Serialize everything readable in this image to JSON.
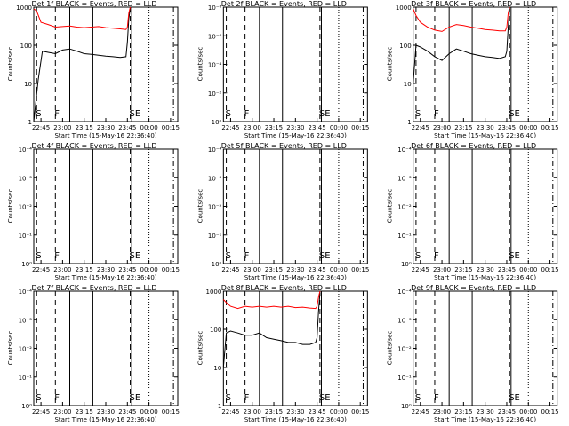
{
  "figure": {
    "panels_per_row": 3,
    "colors": {
      "events": "#000000",
      "lld": "#ff0000",
      "background": "#ffffff"
    },
    "common_xlabel": "Start Time (15-May-16 22:36:40)",
    "x_ticks": [
      "22:45",
      "23:00",
      "23:15",
      "23:30",
      "23:45",
      "00:00",
      "00:15"
    ],
    "markers": [
      {
        "label": "S",
        "time": "22:42",
        "style": "dashed"
      },
      {
        "label": "F",
        "time": "22:55",
        "style": "dashed"
      },
      {
        "label": "SE",
        "time": "23:47",
        "style": "dashed"
      }
    ],
    "vertical_lines": [
      {
        "time": "23:05",
        "style": "solid"
      },
      {
        "time": "23:21",
        "style": "solid"
      },
      {
        "time": "23:48",
        "style": "solid"
      },
      {
        "time": "00:00",
        "style": "dotted"
      },
      {
        "time": "00:17",
        "style": "dash-dot"
      }
    ]
  },
  "chart_data": [
    {
      "type": "line",
      "title": "Det 1f BLACK = Events, RED = LLD",
      "xlabel": "Start Time (15-May-16 22:36:40)",
      "ylabel": "Counts/sec",
      "x_range": [
        "22:40",
        "00:20"
      ],
      "y_scale": "log",
      "ylim": [
        1,
        1000
      ],
      "y_tick_labels": [
        "1",
        "10",
        "100",
        "1000"
      ],
      "series": [
        {
          "name": "Events",
          "color": "#000000",
          "x": [
            "22:40",
            "22:43",
            "22:46",
            "22:50",
            "22:55",
            "23:00",
            "23:05",
            "23:10",
            "23:15",
            "23:20",
            "23:25",
            "23:30",
            "23:35",
            "23:40",
            "23:44",
            "23:45",
            "23:46",
            "23:47"
          ],
          "y": [
            0,
            12,
            70,
            65,
            60,
            75,
            80,
            70,
            60,
            58,
            55,
            52,
            50,
            48,
            50,
            120,
            500,
            900
          ]
        },
        {
          "name": "LLD",
          "color": "#ff0000",
          "x": [
            "22:40",
            "22:42",
            "22:45",
            "22:50",
            "22:55",
            "23:00",
            "23:05",
            "23:10",
            "23:15",
            "23:20",
            "23:25",
            "23:30",
            "23:35",
            "23:40",
            "23:44",
            "23:45",
            "23:46",
            "23:47"
          ],
          "y": [
            900,
            800,
            400,
            350,
            300,
            310,
            320,
            300,
            290,
            300,
            310,
            290,
            280,
            270,
            260,
            300,
            700,
            1000
          ]
        }
      ]
    },
    {
      "type": "line",
      "title": "Det 2f BLACK = Events, RED = LLD",
      "xlabel": "Start Time (15-May-16 22:36:40)",
      "ylabel": "Counts/sec",
      "x_range": [
        "22:40",
        "00:20"
      ],
      "y_scale": "linear",
      "y_tick_labels": [
        "10⁰",
        "10⁻²",
        "10⁻⁴",
        "10⁻⁶",
        "10⁻⁸"
      ],
      "series": []
    },
    {
      "type": "line",
      "title": "Det 3f BLACK = Events, RED = LLD",
      "xlabel": "Start Time (15-May-16 22:36:40)",
      "ylabel": "Counts/sec",
      "x_range": [
        "22:40",
        "00:20"
      ],
      "y_scale": "log",
      "ylim": [
        1,
        1000
      ],
      "y_tick_labels": [
        "1",
        "10",
        "100",
        "1000"
      ],
      "series": [
        {
          "name": "Events",
          "color": "#000000",
          "x": [
            "22:40",
            "22:42",
            "22:45",
            "22:50",
            "22:55",
            "23:00",
            "23:05",
            "23:10",
            "23:15",
            "23:20",
            "23:25",
            "23:30",
            "23:35",
            "23:40",
            "23:44",
            "23:45",
            "23:46",
            "23:47"
          ],
          "y": [
            10,
            100,
            90,
            70,
            50,
            40,
            60,
            80,
            70,
            60,
            55,
            50,
            48,
            45,
            50,
            70,
            300,
            900
          ]
        },
        {
          "name": "LLD",
          "color": "#ff0000",
          "x": [
            "22:40",
            "22:42",
            "22:45",
            "22:50",
            "22:55",
            "23:00",
            "23:05",
            "23:10",
            "23:15",
            "23:20",
            "23:25",
            "23:30",
            "23:35",
            "23:40",
            "23:44",
            "23:45",
            "23:46",
            "23:47"
          ],
          "y": [
            900,
            600,
            400,
            300,
            250,
            230,
            300,
            350,
            330,
            300,
            280,
            260,
            250,
            240,
            240,
            300,
            700,
            1000
          ]
        }
      ]
    },
    {
      "type": "line",
      "title": "Det 4f BLACK = Events, RED = LLD",
      "xlabel": "Start Time (15-May-16 22:36:40)",
      "ylabel": "Counts/sec",
      "x_range": [
        "22:40",
        "00:20"
      ],
      "y_scale": "linear",
      "y_tick_labels": [
        "10⁰",
        "10⁻¹",
        "10⁻²",
        "10⁻³",
        "10⁻⁴"
      ],
      "series": []
    },
    {
      "type": "line",
      "title": "Det 5f BLACK = Events, RED = LLD",
      "xlabel": "Start Time (15-May-16 22:36:40)",
      "ylabel": "Counts/sec",
      "x_range": [
        "22:40",
        "00:20"
      ],
      "y_scale": "linear",
      "y_tick_labels": [
        "10⁰",
        "10⁻¹",
        "10⁻²",
        "10⁻³",
        "10⁻⁴"
      ],
      "series": []
    },
    {
      "type": "line",
      "title": "Det 6f BLACK = Events, RED = LLD",
      "xlabel": "Start Time (15-May-16 22:36:40)",
      "ylabel": "Counts/sec",
      "x_range": [
        "22:40",
        "00:20"
      ],
      "y_scale": "linear",
      "y_tick_labels": [
        "10⁰",
        "10⁻¹",
        "10⁻²",
        "10⁻³",
        "10⁻⁴"
      ],
      "series": []
    },
    {
      "type": "line",
      "title": "Det 7f BLACK = Events, RED = LLD",
      "xlabel": "Start Time (15-May-16 22:36:40)",
      "ylabel": "Counts/sec",
      "x_range": [
        "22:40",
        "00:20"
      ],
      "y_scale": "linear",
      "y_tick_labels": [
        "10⁰",
        "10⁻¹",
        "10⁻²",
        "10⁻³",
        "10⁻⁴"
      ],
      "series": []
    },
    {
      "type": "line",
      "title": "Det 8f BLACK = Events, RED = LLD",
      "xlabel": "Start Time (15-May-16 22:36:40)",
      "ylabel": "Counts/sec",
      "x_range": [
        "22:40",
        "00:20"
      ],
      "y_scale": "log",
      "ylim": [
        1,
        1000
      ],
      "y_tick_labels": [
        "1",
        "10",
        "100",
        "1000"
      ],
      "series": [
        {
          "name": "Events",
          "color": "#000000",
          "x": [
            "22:40",
            "22:42",
            "22:45",
            "22:50",
            "22:55",
            "23:00",
            "23:05",
            "23:10",
            "23:15",
            "23:20",
            "23:25",
            "23:30",
            "23:35",
            "23:40",
            "23:44",
            "23:45",
            "23:46",
            "23:47"
          ],
          "y": [
            10,
            80,
            90,
            80,
            70,
            70,
            80,
            60,
            55,
            50,
            45,
            45,
            40,
            40,
            45,
            60,
            300,
            900
          ]
        },
        {
          "name": "LLD",
          "color": "#ff0000",
          "x": [
            "22:40",
            "22:42",
            "22:45",
            "22:50",
            "22:55",
            "23:00",
            "23:05",
            "23:10",
            "23:15",
            "23:20",
            "23:25",
            "23:30",
            "23:35",
            "23:40",
            "23:44",
            "23:45",
            "23:46",
            "23:47"
          ],
          "y": [
            600,
            500,
            400,
            350,
            400,
            380,
            400,
            380,
            400,
            380,
            400,
            370,
            380,
            360,
            350,
            400,
            700,
            1000
          ]
        }
      ]
    },
    {
      "type": "line",
      "title": "Det 9f BLACK = Events, RED = LLD",
      "xlabel": "Start Time (15-May-16 22:36:40)",
      "ylabel": "Counts/sec",
      "x_range": [
        "22:40",
        "00:20"
      ],
      "y_scale": "linear",
      "y_tick_labels": [
        "10⁰",
        "10⁻¹",
        "10⁻²",
        "10⁻³",
        "10⁻⁴"
      ],
      "series": []
    }
  ]
}
